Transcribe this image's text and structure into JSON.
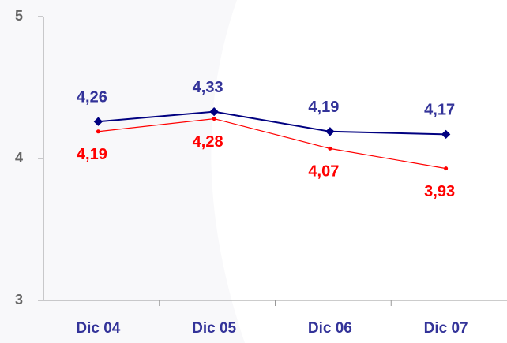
{
  "chart_data": {
    "type": "line",
    "categories": [
      "Dic 04",
      "Dic 05",
      "Dic 06",
      "Dic 07"
    ],
    "series": [
      {
        "color": "#000080",
        "values": [
          4.26,
          4.33,
          4.19,
          4.17
        ],
        "value_labels": [
          "4,26",
          "4,33",
          "4,19",
          "4,17"
        ],
        "label_color": "#333399"
      },
      {
        "color": "#ff0000",
        "values": [
          4.19,
          4.28,
          4.07,
          3.93
        ],
        "value_labels": [
          "4,19",
          "4,28",
          "4,07",
          "3,93"
        ],
        "label_color": "#ff0000"
      }
    ],
    "ylim": [
      3,
      5
    ],
    "yticks": [
      3,
      4,
      5
    ]
  }
}
